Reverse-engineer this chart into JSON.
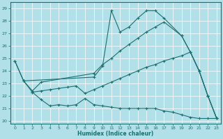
{
  "xlabel": "Humidex (Indice chaleur)",
  "bg_color": "#b2e0e8",
  "line_color": "#1a7070",
  "grid_color": "#ffffff",
  "xlim": [
    -0.5,
    23.5
  ],
  "ylim": [
    19.8,
    29.5
  ],
  "yticks": [
    20,
    21,
    22,
    23,
    24,
    25,
    26,
    27,
    28,
    29
  ],
  "xticks": [
    0,
    1,
    2,
    3,
    4,
    5,
    6,
    7,
    8,
    9,
    10,
    11,
    12,
    13,
    14,
    15,
    16,
    17,
    18,
    19,
    20,
    21,
    22,
    23
  ],
  "line_zigzag_x": [
    0,
    1,
    9,
    10,
    11,
    12,
    13,
    14,
    15,
    16,
    17,
    19,
    20,
    21,
    22,
    23
  ],
  "line_zigzag_y": [
    24.8,
    23.2,
    23.5,
    24.4,
    28.8,
    27.1,
    27.5,
    28.2,
    28.8,
    28.8,
    28.2,
    26.8,
    25.5,
    24.0,
    22.0,
    20.2
  ],
  "line_lower_x": [
    0,
    1,
    2,
    3,
    4,
    5,
    6,
    7,
    8,
    9,
    10,
    11,
    12,
    13,
    14,
    15,
    16,
    17,
    18,
    19,
    20,
    21,
    22,
    23
  ],
  "line_lower_y": [
    24.8,
    23.2,
    22.3,
    21.7,
    21.2,
    21.3,
    21.2,
    21.3,
    21.8,
    21.3,
    21.2,
    21.1,
    21.0,
    21.0,
    21.0,
    21.0,
    21.0,
    20.8,
    20.7,
    20.5,
    20.3,
    20.2,
    20.2,
    20.2
  ],
  "line_upper_diag_x": [
    1,
    2,
    3,
    9,
    10,
    11,
    12,
    13,
    14,
    15,
    16,
    17,
    19,
    20,
    21,
    22,
    23
  ],
  "line_upper_diag_y": [
    23.2,
    22.4,
    23.1,
    23.8,
    24.5,
    25.0,
    25.6,
    26.1,
    26.6,
    27.1,
    27.5,
    27.9,
    26.8,
    25.5,
    24.0,
    22.0,
    20.2
  ],
  "line_lower_diag_x": [
    2,
    3,
    4,
    5,
    6,
    7,
    8,
    9,
    10,
    11,
    12,
    13,
    14,
    15,
    16,
    17,
    18,
    19,
    20,
    21,
    22,
    23
  ],
  "line_lower_diag_y": [
    22.3,
    22.4,
    22.5,
    22.6,
    22.7,
    22.8,
    22.2,
    22.5,
    22.8,
    23.1,
    23.4,
    23.7,
    24.0,
    24.3,
    24.5,
    24.8,
    25.0,
    25.2,
    25.5,
    24.0,
    22.0,
    20.2
  ]
}
